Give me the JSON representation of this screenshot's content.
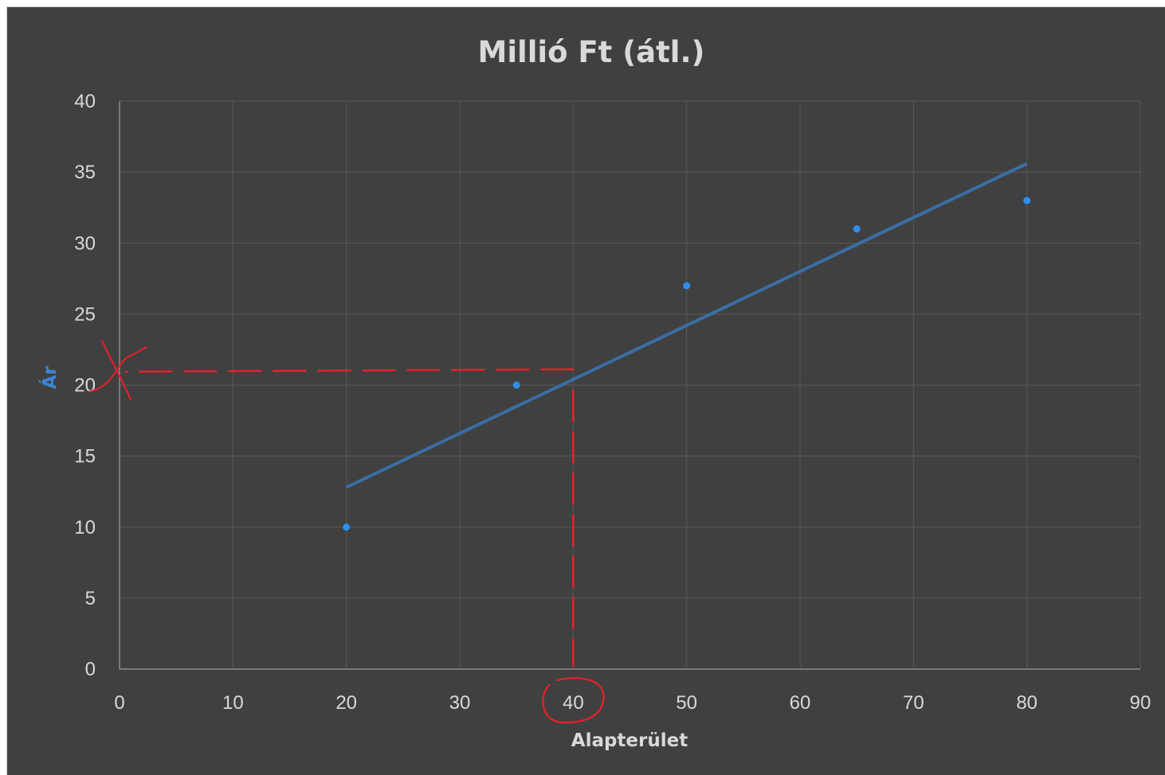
{
  "chart_data": {
    "type": "scatter",
    "title": "Millió Ft (átl.)",
    "xlabel": "Alapterület",
    "ylabel": "Ár",
    "xlim": [
      0,
      90
    ],
    "ylim": [
      0,
      40
    ],
    "x_ticks": [
      0,
      10,
      20,
      30,
      40,
      50,
      60,
      70,
      80,
      90
    ],
    "y_ticks": [
      0,
      5,
      10,
      15,
      20,
      25,
      30,
      35,
      40
    ],
    "grid": true,
    "legend": "none",
    "series": [
      {
        "points": [
          {
            "x": 20,
            "y": 10
          },
          {
            "x": 35,
            "y": 20
          },
          {
            "x": 50,
            "y": 27
          },
          {
            "x": 65,
            "y": 31
          },
          {
            "x": 80,
            "y": 33
          }
        ],
        "color": "#2e8ff0"
      }
    ],
    "trendline": {
      "type": "linear",
      "from": {
        "x": 20,
        "y": 12.8
      },
      "to": {
        "x": 80,
        "y": 35.6
      },
      "color": "#3a6ea5"
    },
    "annotations": {
      "reading_x": 40,
      "reading_y": 21,
      "color": "#e8202a"
    }
  },
  "colors": {
    "background": "#404040",
    "grid": "#595959",
    "text": "#d9d9d9",
    "ylabel": "#3b86d6"
  }
}
